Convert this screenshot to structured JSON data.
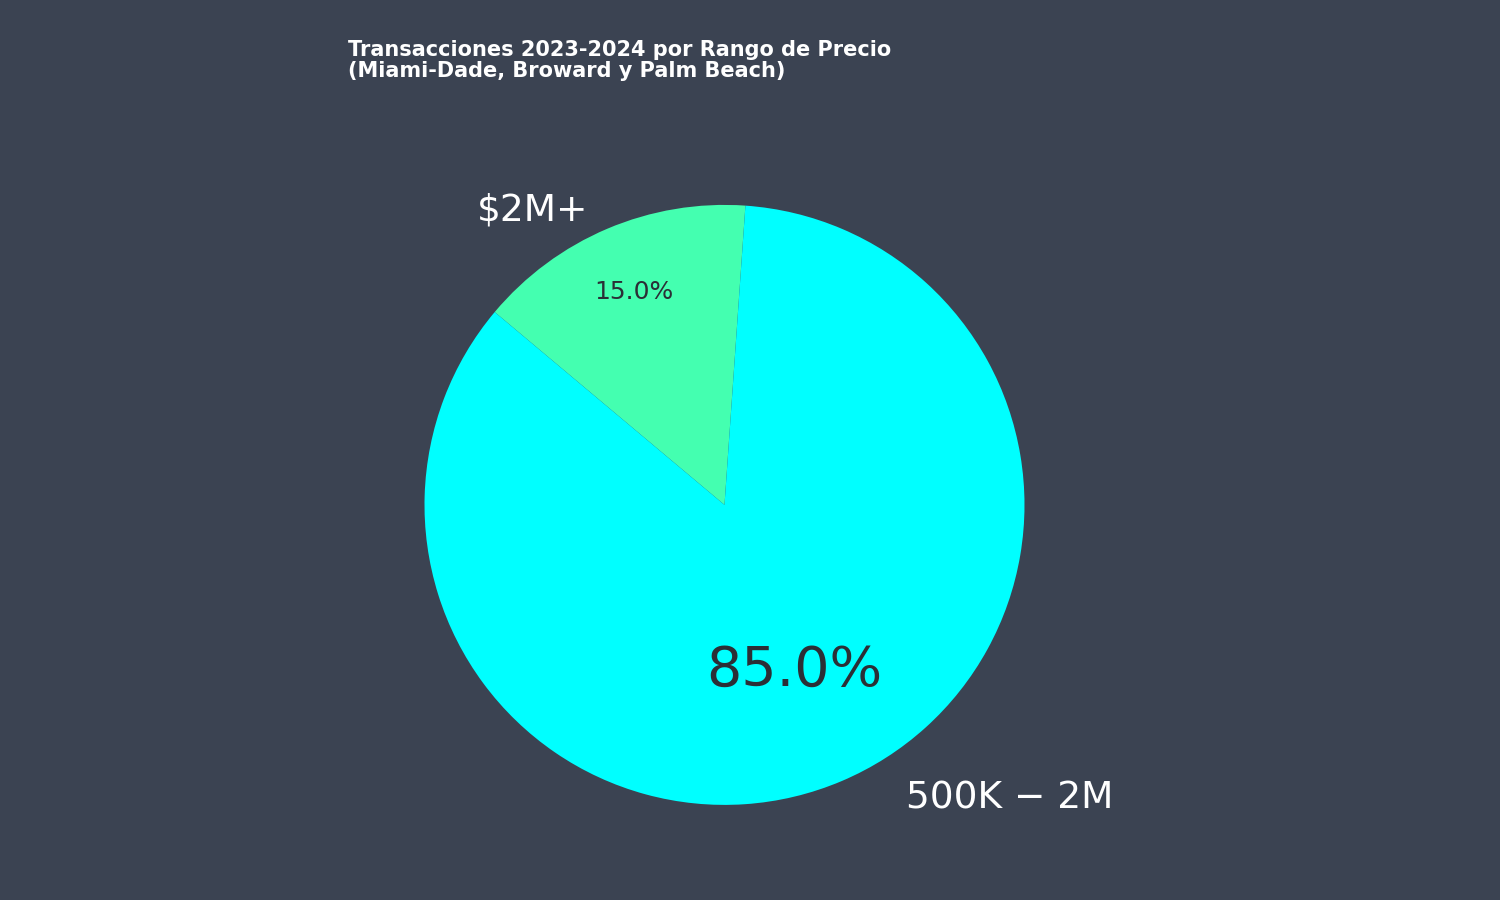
{
  "chart_data": {
    "type": "pie",
    "title": "Transacciones 2023-2024 por Rango de Precio\n(Miami-Dade, Broward y Palm Beach)",
    "categories": [
      "$2M+",
      "500K − 2M"
    ],
    "values": [
      15,
      85
    ],
    "value_labels": [
      "15.0%",
      "85.0%"
    ],
    "data_labels": true,
    "colors": [
      "#44ffb0",
      "#00ffff"
    ]
  }
}
